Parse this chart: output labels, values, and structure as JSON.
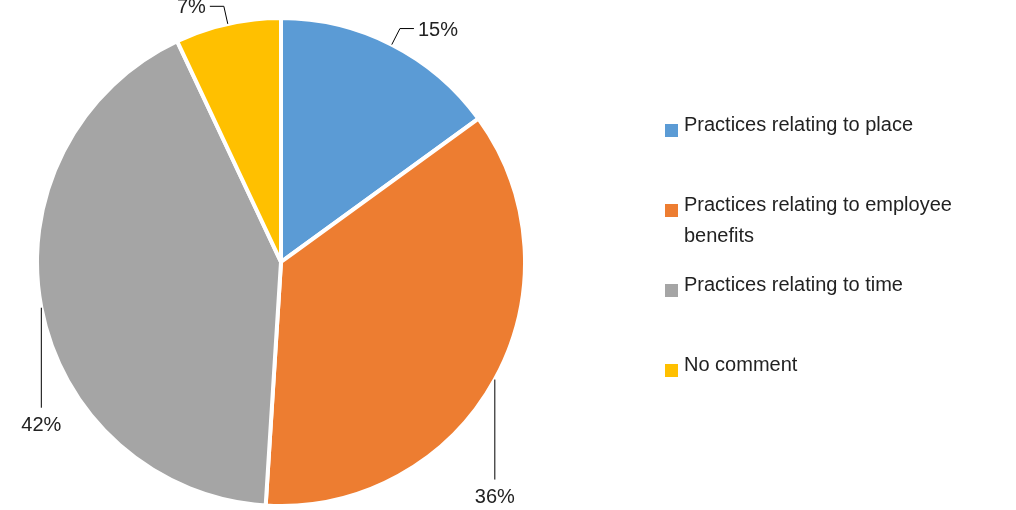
{
  "chart_data": {
    "type": "pie",
    "categories": [
      "Practices relating to place",
      "Practices relating to employee benefits",
      "Practices relating to time",
      "No comment"
    ],
    "values": [
      15,
      36,
      42,
      7
    ],
    "colors": [
      "#5b9bd5",
      "#ed7d31",
      "#a5a5a5",
      "#ffc000"
    ],
    "value_labels": [
      "15%",
      "36%",
      "42%",
      "7%"
    ],
    "legend": "right"
  }
}
